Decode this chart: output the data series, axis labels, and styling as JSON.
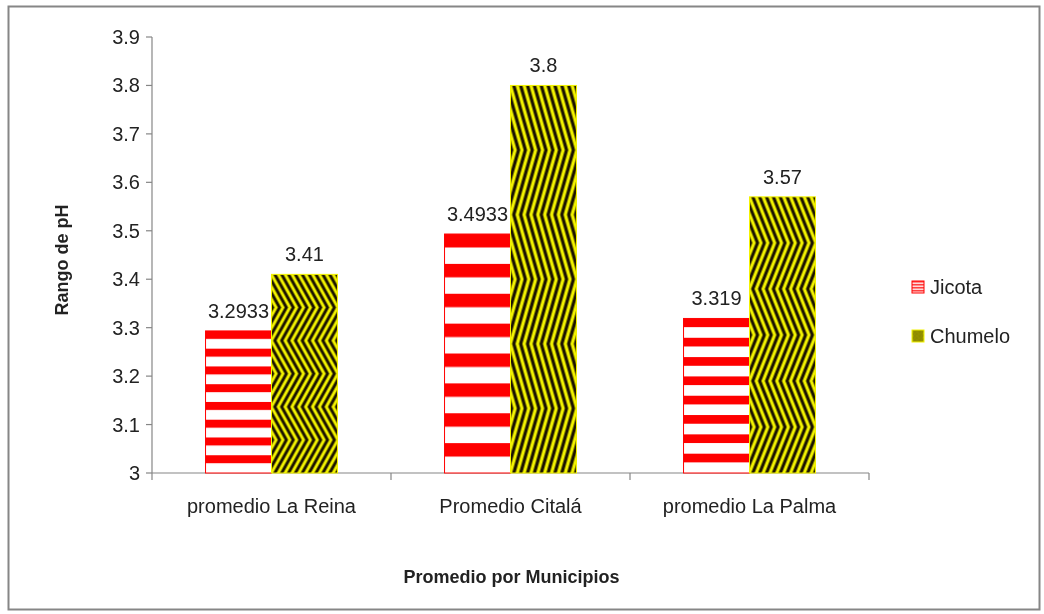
{
  "chart_data": {
    "type": "bar",
    "xlabel": "Promedio por Municipios",
    "ylabel": "Rango de pH",
    "categories": [
      "promedio La Reina",
      "Promedio Citalá",
      "promedio La Palma"
    ],
    "series": [
      {
        "name": "Jicota",
        "color": "#ff0000",
        "values": [
          3.2933,
          3.4933,
          3.319
        ]
      },
      {
        "name": "Chumelo",
        "color": "#f2f200",
        "values": [
          3.41,
          3.8,
          3.57
        ]
      }
    ],
    "ylim": [
      3,
      3.9
    ],
    "yticks": [
      3,
      3.1,
      3.2,
      3.3,
      3.4,
      3.5,
      3.6,
      3.7,
      3.8,
      3.9
    ],
    "data_labels": true,
    "legend": "right",
    "grid": false
  }
}
